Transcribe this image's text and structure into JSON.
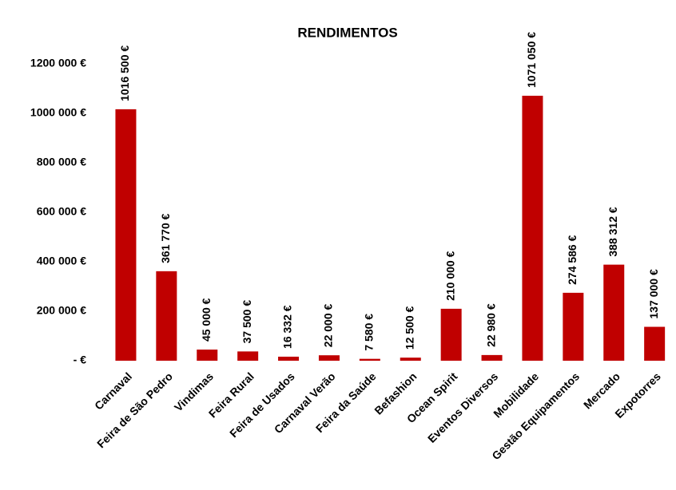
{
  "chart_data": {
    "type": "bar",
    "title": "RENDIMENTOS",
    "categories": [
      "Carnaval",
      "Feira de São Pedro",
      "Vindimas",
      "Feira Rural",
      "Feira de Usados",
      "Carnaval Verão",
      "Feira da Saúde",
      "Befashion",
      "Ocean Spirit",
      "Eventos Diversos",
      "Mobilidade",
      "Gestão Equipamentos",
      "Mercado",
      "Expotorres"
    ],
    "values": [
      1016500,
      361770,
      45000,
      37500,
      16332,
      22000,
      7580,
      12500,
      210000,
      22980,
      1071050,
      274586,
      388312,
      137000
    ],
    "value_labels": [
      "1016 500 €",
      "361 770 €",
      "45 000 €",
      "37 500 €",
      "16 332 €",
      "22 000 €",
      "7 580 €",
      "12 500 €",
      "210 000 €",
      "22 980 €",
      "1071 050 €",
      "274 586 €",
      "388 312 €",
      "137 000 €"
    ],
    "color": "#c00000",
    "ylim": [
      0,
      1200000
    ],
    "yticks": [
      {
        "value": 0,
        "label": "-   €"
      },
      {
        "value": 200000,
        "label": "200 000 €"
      },
      {
        "value": 400000,
        "label": "400 000 €"
      },
      {
        "value": 600000,
        "label": "600 000 €"
      },
      {
        "value": 800000,
        "label": "800 000 €"
      },
      {
        "value": 1000000,
        "label": "1000 000 €"
      },
      {
        "value": 1200000,
        "label": "1200 000 €"
      }
    ],
    "grid": false
  }
}
